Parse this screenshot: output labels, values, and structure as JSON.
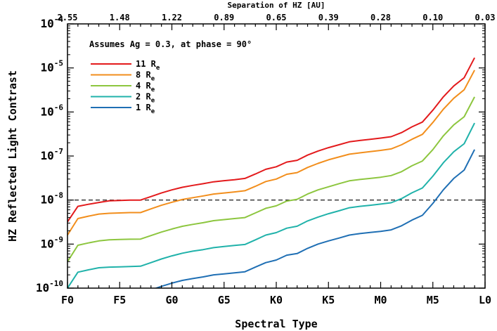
{
  "chart_data": {
    "type": "line",
    "xlabel": "Spectral Type",
    "ylabel": "HZ Reflected Light Contrast",
    "top_axis_label": "Separation of HZ [AU]",
    "annotation": "Assumes Ag = 0.3, at phase = 90°",
    "x_ticks": [
      "F0",
      "F5",
      "G0",
      "G5",
      "K0",
      "K5",
      "M0",
      "M5",
      "L0"
    ],
    "top_ticks": [
      "2.55",
      "1.48",
      "1.22",
      "0.89",
      "0.65",
      "0.39",
      "0.28",
      "0.10",
      "0.03"
    ],
    "y_log": true,
    "y_range": [
      1e-10,
      0.0001
    ],
    "y_ticks": [
      {
        "base": "10",
        "exp": "-10",
        "value": 1e-10
      },
      {
        "base": "10",
        "exp": "-9",
        "value": 1e-09
      },
      {
        "base": "10",
        "exp": "-8",
        "value": 1e-08
      },
      {
        "base": "10",
        "exp": "-7",
        "value": 1e-07
      },
      {
        "base": "10",
        "exp": "-6",
        "value": 1e-06
      },
      {
        "base": "10",
        "exp": "-5",
        "value": 1e-05
      },
      {
        "base": "10",
        "exp": "-4",
        "value": 0.0001
      }
    ],
    "reference_line": {
      "value": 1e-08,
      "style": "dashed"
    },
    "legend_position": "top-left",
    "x_units": "spectral subtypes (F0=0, F5=5, G0=10, ... L0=40)",
    "x": [
      0,
      1,
      2,
      3,
      4,
      5,
      6,
      7,
      8,
      9,
      10,
      11,
      12,
      13,
      14,
      15,
      16,
      17,
      18,
      19,
      20,
      21,
      22,
      23,
      24,
      25,
      26,
      27,
      28,
      29,
      30,
      31,
      32,
      33,
      34,
      35,
      36,
      37,
      38,
      39
    ],
    "series": [
      {
        "name": "11",
        "sub": "e",
        "color": "#e31a1c",
        "values": [
          3.2e-09,
          7.2e-09,
          8e-09,
          8.8e-09,
          9.6e-09,
          9.8e-09,
          1e-08,
          1e-08,
          1.2e-08,
          1.45e-08,
          1.7e-08,
          1.95e-08,
          2.15e-08,
          2.35e-08,
          2.6e-08,
          2.75e-08,
          2.9e-08,
          3.1e-08,
          3.9e-08,
          5e-08,
          5.7e-08,
          7.3e-08,
          8e-08,
          1.05e-07,
          1.3e-07,
          1.55e-07,
          1.8e-07,
          2.1e-07,
          2.25e-07,
          2.4e-07,
          2.55e-07,
          2.75e-07,
          3.4e-07,
          4.6e-07,
          5.9e-07,
          1.1e-06,
          2.2e-06,
          3.9e-06,
          6e-06,
          1.7e-05
        ]
      },
      {
        "name": "8",
        "sub": "e",
        "color": "#f28e1c",
        "values": [
          1.6e-09,
          3.8e-09,
          4.3e-09,
          4.8e-09,
          5e-09,
          5.1e-09,
          5.2e-09,
          5.2e-09,
          6.3e-09,
          7.6e-09,
          8.9e-09,
          1.03e-08,
          1.13e-08,
          1.24e-08,
          1.37e-08,
          1.45e-08,
          1.53e-08,
          1.63e-08,
          2.05e-08,
          2.63e-08,
          3e-08,
          3.84e-08,
          4.2e-08,
          5.5e-08,
          6.8e-08,
          8.2e-08,
          9.5e-08,
          1.1e-07,
          1.18e-07,
          1.26e-07,
          1.34e-07,
          1.45e-07,
          1.8e-07,
          2.4e-07,
          3.1e-07,
          5.8e-07,
          1.15e-06,
          2.05e-06,
          3.2e-06,
          8.9e-06
        ]
      },
      {
        "name": "4",
        "sub": "e",
        "color": "#8dc63f",
        "values": [
          4e-10,
          9.4e-10,
          1.06e-09,
          1.18e-09,
          1.25e-09,
          1.27e-09,
          1.29e-09,
          1.3e-09,
          1.56e-09,
          1.88e-09,
          2.2e-09,
          2.54e-09,
          2.8e-09,
          3.06e-09,
          3.4e-09,
          3.6e-09,
          3.8e-09,
          4e-09,
          5.1e-09,
          6.5e-09,
          7.4e-09,
          9.5e-09,
          1.04e-08,
          1.37e-08,
          1.7e-08,
          2e-08,
          2.35e-08,
          2.73e-08,
          2.93e-08,
          3.1e-08,
          3.3e-08,
          3.6e-08,
          4.4e-08,
          6e-08,
          7.7e-08,
          1.4e-07,
          2.86e-07,
          5.1e-07,
          7.8e-07,
          2.2e-06
        ]
      },
      {
        "name": "2",
        "sub": "e",
        "color": "#20b2aa",
        "values": [
          1e-10,
          2.3e-10,
          2.6e-10,
          2.9e-10,
          3e-10,
          3.05e-10,
          3.1e-10,
          3.15e-10,
          3.8e-10,
          4.6e-10,
          5.4e-10,
          6.2e-10,
          6.9e-10,
          7.5e-10,
          8.3e-10,
          8.8e-10,
          9.3e-10,
          9.8e-10,
          1.25e-09,
          1.6e-09,
          1.82e-09,
          2.3e-09,
          2.55e-09,
          3.35e-09,
          4.1e-09,
          4.9e-09,
          5.7e-09,
          6.7e-09,
          7.2e-09,
          7.6e-09,
          8.1e-09,
          8.7e-09,
          1.08e-08,
          1.46e-08,
          1.88e-08,
          3.5e-08,
          7e-08,
          1.25e-07,
          1.9e-07,
          5.6e-07
        ]
      },
      {
        "name": "1",
        "sub": "e",
        "color": "#1f6fb4",
        "values": [
          null,
          null,
          null,
          null,
          null,
          null,
          null,
          7.6e-11,
          9.1e-11,
          1.1e-10,
          1.3e-10,
          1.5e-10,
          1.65e-10,
          1.8e-10,
          2e-10,
          2.1e-10,
          2.22e-10,
          2.35e-10,
          3e-10,
          3.8e-10,
          4.35e-10,
          5.6e-10,
          6.1e-10,
          8e-10,
          1e-09,
          1.18e-09,
          1.37e-09,
          1.6e-09,
          1.73e-09,
          1.84e-09,
          1.95e-09,
          2.1e-09,
          2.6e-09,
          3.5e-09,
          4.5e-09,
          8.4e-09,
          1.7e-08,
          3.1e-08,
          4.8e-08,
          1.4e-07
        ]
      }
    ]
  }
}
